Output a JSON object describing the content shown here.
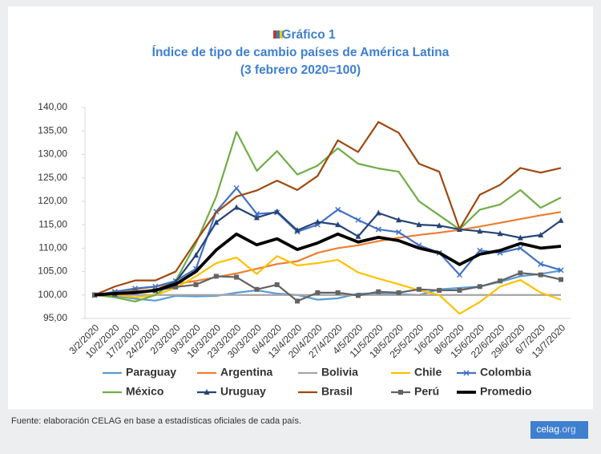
{
  "chart_data": {
    "type": "line",
    "title": "Gráfico 1",
    "subtitle": "Índice de tipo de cambio países de América Latina",
    "subtitle2": "(3 febrero 2020=100)",
    "categories": [
      "3/2/2020",
      "10/2/2020",
      "17/2/2020",
      "24/2/2020",
      "2/3/2020",
      "9/3/2020",
      "16/3/2020",
      "23/3/2020",
      "30/3/2020",
      "6/4/2020",
      "13/4/2020",
      "20/4/2020",
      "27/4/2020",
      "4/5/2020",
      "11/5/2020",
      "18/5/2020",
      "25/5/2020",
      "1/6/2020",
      "8/6/2020",
      "15/6/2020",
      "22/6/2020",
      "29/6/2020",
      "6/7/2020",
      "13/7/2020"
    ],
    "ylim": [
      95,
      140
    ],
    "yticks": [
      {
        "value": 95,
        "label": "95,00"
      },
      {
        "value": 100,
        "label": "100,00"
      },
      {
        "value": 105,
        "label": "105,00"
      },
      {
        "value": 110,
        "label": "110,00"
      },
      {
        "value": 115,
        "label": "115,00"
      },
      {
        "value": 120,
        "label": "120,00"
      },
      {
        "value": 125,
        "label": "125,00"
      },
      {
        "value": 130,
        "label": "130,00"
      },
      {
        "value": 135,
        "label": "135,00"
      },
      {
        "value": 140,
        "label": "140,00"
      }
    ],
    "series": [
      {
        "name": "Paraguay",
        "color": "#5b9bd5",
        "width": 2.2,
        "values": [
          100,
          99.8,
          99.2,
          98.8,
          99.8,
          99.7,
          99.8,
          100.5,
          101,
          100.3,
          100,
          99,
          99.3,
          100.3,
          100.3,
          100.2,
          100,
          101.2,
          101.5,
          101.8,
          102.8,
          104,
          104.5,
          105.2
        ]
      },
      {
        "name": "Argentina",
        "color": "#ed7d31",
        "width": 2.2,
        "values": [
          100,
          100.6,
          101.2,
          101.8,
          102.4,
          103,
          103.8,
          104.6,
          105.6,
          106.6,
          107.2,
          109,
          110,
          110.6,
          111.5,
          112.2,
          112.8,
          113.3,
          113.9,
          114.6,
          115.4,
          116.2,
          117,
          117.7
        ]
      },
      {
        "name": "Bolivia",
        "color": "#a5a5a5",
        "width": 2.2,
        "values": [
          100,
          100,
          100,
          100,
          100,
          100,
          100,
          100,
          100,
          100,
          100,
          100,
          100,
          100,
          100,
          100,
          100,
          100,
          100,
          100,
          100,
          100,
          100,
          100
        ]
      },
      {
        "name": "Chile",
        "color": "#ffc000",
        "width": 2.2,
        "values": [
          100,
          100,
          99.5,
          100,
          101.5,
          104,
          106.8,
          108,
          104.5,
          108.3,
          106.3,
          106.8,
          107.5,
          104.8,
          103.5,
          102.3,
          101,
          100,
          96,
          98.5,
          101.8,
          103.2,
          100.5,
          99
        ]
      },
      {
        "name": "Colombia",
        "color": "#4472c4",
        "width": 2.2,
        "marker": "x",
        "values": [
          100,
          100.7,
          101.4,
          101.8,
          103,
          105.6,
          117.8,
          122.8,
          117.3,
          117.6,
          113.5,
          115,
          118.2,
          116,
          114,
          113.4,
          110.6,
          109,
          104.3,
          109.5,
          109,
          110,
          106.6,
          105.3
        ]
      },
      {
        "name": "México",
        "color": "#70ad47",
        "width": 2.2,
        "values": [
          100,
          99.5,
          98.6,
          100,
          103,
          111,
          121,
          134.8,
          126.5,
          130.7,
          125.7,
          127.6,
          131.3,
          128,
          127,
          126.3,
          120,
          117,
          114,
          118.2,
          119.3,
          122.4,
          118.6,
          120.8
        ]
      },
      {
        "name": "Uruguay",
        "color": "#264478",
        "width": 2.2,
        "marker": "triangle",
        "values": [
          100,
          100.2,
          100.8,
          100.9,
          102.8,
          108.5,
          115.5,
          118.7,
          116.5,
          117.8,
          113.8,
          115.6,
          115,
          112.5,
          117.5,
          116,
          115,
          114.8,
          114,
          113.6,
          113.1,
          112.2,
          112.8,
          115.9
        ]
      },
      {
        "name": "Brasil",
        "color": "#9e480e",
        "width": 2.2,
        "values": [
          100,
          101.8,
          103.1,
          103.1,
          105,
          111.5,
          117.6,
          121,
          122.3,
          124.4,
          122.4,
          125.4,
          133,
          130.5,
          136.9,
          134.6,
          128,
          126.3,
          114.1,
          121.4,
          123.5,
          127.1,
          126.1,
          127.1
        ]
      },
      {
        "name": "Perú",
        "color": "#636363",
        "width": 2.2,
        "marker": "square",
        "values": [
          100,
          100.4,
          100.8,
          100.9,
          101.7,
          102.2,
          104,
          103.8,
          101.2,
          102.2,
          98.7,
          100.5,
          100.5,
          99.9,
          100.7,
          100.5,
          101.2,
          101,
          101,
          101.8,
          103,
          104.7,
          104.3,
          103.3
        ]
      },
      {
        "name": "Promedio",
        "color": "#000000",
        "width": 3.8,
        "values": [
          100,
          100.3,
          100.5,
          101,
          102.3,
          105,
          109.6,
          113,
          110.7,
          112,
          109.7,
          111.1,
          113,
          111.3,
          112.3,
          111.6,
          110,
          109,
          106.5,
          108.7,
          109.5,
          111,
          110,
          110.4
        ]
      }
    ],
    "source": "Fuente: elaboración CELAG en base a estadísticas oficiales de cada país.",
    "brand": "celag",
    "brand_suffix": ".org"
  }
}
